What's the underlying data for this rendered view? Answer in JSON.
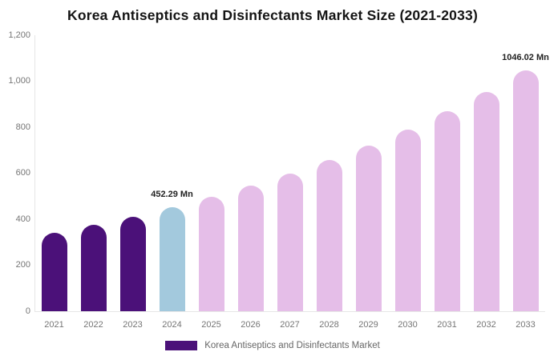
{
  "title": "Korea Antiseptics and Disinfectants Market Size (2021-2033)",
  "colors": {
    "historical": "#4B1179",
    "current": "#A3C9DD",
    "forecast": "#E5BEE8",
    "axis_line": "#e6e6e6",
    "axis_text": "#757575",
    "data_label_text": "#222222",
    "title_text": "#141414",
    "legend_text": "#666666"
  },
  "chart_data": {
    "type": "bar",
    "title": "Korea Antiseptics and Disinfectants Market Size (2021-2033)",
    "xlabel": "",
    "ylabel": "",
    "ylim": [
      0,
      1200
    ],
    "ytick_labels": [
      "0",
      "200",
      "400",
      "600",
      "800",
      "1,000",
      "1,200"
    ],
    "grid": false,
    "legend_position": "bottom",
    "categories": [
      "2021",
      "2022",
      "2023",
      "2024",
      "2025",
      "2026",
      "2027",
      "2028",
      "2029",
      "2030",
      "2031",
      "2032",
      "2033"
    ],
    "series": [
      {
        "name": "Korea Antiseptics and Disinfectants Market",
        "values": [
          342,
          375,
          412,
          452.29,
          496,
          545,
          598,
          656,
          720,
          791,
          868,
          953,
          1046.02
        ],
        "unit": "Mn"
      }
    ],
    "bar_roles": [
      "historical",
      "historical",
      "historical",
      "current",
      "forecast",
      "forecast",
      "forecast",
      "forecast",
      "forecast",
      "forecast",
      "forecast",
      "forecast",
      "forecast"
    ],
    "data_labels": [
      {
        "category": "2024",
        "index": 3,
        "text": "452.29 Mn"
      },
      {
        "category": "2033",
        "index": 12,
        "text": "1046.02 Mn"
      }
    ]
  },
  "legend": {
    "label": "Korea Antiseptics and Disinfectants Market"
  }
}
